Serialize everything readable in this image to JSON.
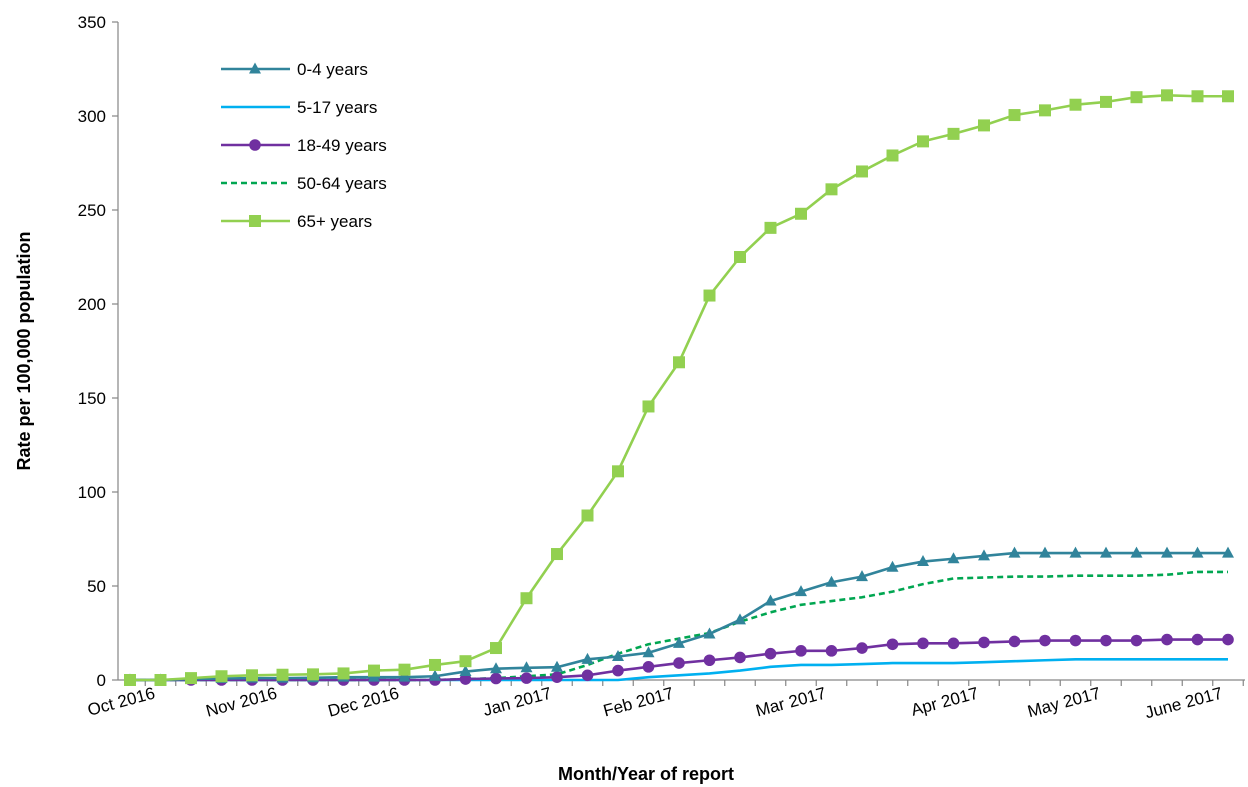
{
  "chart_data": {
    "type": "line",
    "xlabel": "Month/Year of report",
    "ylabel": "Rate per 100,000 population",
    "ylim": [
      0,
      350
    ],
    "yticks": [
      0,
      50,
      100,
      150,
      200,
      250,
      300,
      350
    ],
    "x_tick_labels": [
      "Oct 2016",
      "Nov 2016",
      "Dec 2016",
      "Jan 2017",
      "Feb 2017",
      "Mar 2017",
      "Apr 2017",
      "May 2017",
      "June 2017"
    ],
    "legend_position": "top-left",
    "grid": false,
    "series": [
      {
        "name": "0-4 years",
        "color": "#31849B",
        "marker": "triangle",
        "dash": "solid",
        "values": [
          0,
          0,
          0.5,
          0.8,
          1,
          1,
          1.2,
          1.5,
          1.5,
          1.5,
          2,
          4.5,
          6,
          6.5,
          6.8,
          11,
          12.5,
          14.5,
          19.5,
          24.5,
          32,
          42,
          47,
          52,
          55,
          60,
          63,
          64.5,
          66,
          67.5,
          67.5,
          67.5,
          67.5,
          67.5,
          67.5,
          67.5,
          67.5
        ]
      },
      {
        "name": "5-17 years",
        "color": "#00B0F0",
        "marker": "none",
        "dash": "solid",
        "values": [
          0,
          0,
          0,
          0,
          0,
          0,
          0,
          0,
          0,
          0,
          0,
          0,
          0,
          0,
          0,
          0,
          0,
          1.5,
          2.5,
          3.5,
          5,
          7,
          8,
          8,
          8.5,
          9,
          9,
          9,
          9.5,
          10,
          10.5,
          11,
          11,
          11,
          11,
          11,
          11
        ]
      },
      {
        "name": "18-49 years",
        "color": "#7030A0",
        "marker": "circle",
        "dash": "solid",
        "values": [
          0,
          0,
          0,
          0,
          0,
          0,
          0,
          0,
          0,
          0,
          0,
          0.5,
          0.8,
          1,
          1.5,
          2.5,
          5,
          7,
          9,
          10.5,
          12,
          14,
          15.5,
          15.5,
          17,
          19,
          19.5,
          19.5,
          20,
          20.5,
          21,
          21,
          21,
          21,
          21.5,
          21.5,
          21.5
        ]
      },
      {
        "name": "50-64 years",
        "color": "#00A651",
        "marker": "none",
        "dash": "dashed",
        "values": [
          0,
          0,
          0,
          0,
          0,
          0,
          0,
          0,
          0,
          0,
          0,
          0.5,
          1,
          2,
          3,
          8,
          14,
          19,
          22,
          25,
          31,
          36,
          40,
          42,
          44,
          47,
          51,
          54,
          54.5,
          55,
          55,
          55.5,
          55.5,
          55.5,
          56,
          57.5,
          57.5
        ]
      },
      {
        "name": "65+ years",
        "color": "#92D050",
        "marker": "square",
        "dash": "solid",
        "values": [
          0,
          0,
          1,
          2,
          2.5,
          2.8,
          3,
          3.5,
          5,
          5.5,
          8,
          10,
          17,
          43.5,
          67,
          87.5,
          111,
          145.5,
          169,
          204.5,
          225,
          240.5,
          248,
          261,
          270.5,
          279,
          286.5,
          290.5,
          295,
          300.5,
          303,
          306,
          307.5,
          310,
          311,
          310.5,
          310.5
        ]
      }
    ]
  }
}
